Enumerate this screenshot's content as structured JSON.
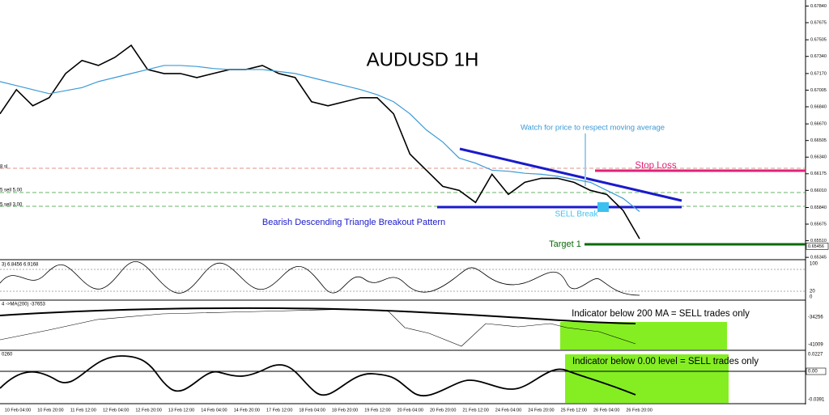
{
  "chart_data": {
    "type": "line",
    "title": "AUDUSD 1H",
    "categories": [
      null,
      null,
      null,
      null,
      null,
      null,
      null,
      null,
      null,
      null,
      null,
      null,
      null,
      null,
      null,
      null,
      null,
      null,
      null,
      null,
      null,
      null,
      null,
      null,
      null,
      null,
      null,
      null,
      null,
      null,
      null,
      null,
      null,
      null,
      null,
      null,
      null,
      null,
      null,
      null
    ],
    "series": [
      {
        "color": "#000000",
        "values": [
          0.6677,
          0.6701,
          0.6685,
          0.6693,
          0.6717,
          0.673,
          0.6725,
          0.6733,
          0.6745,
          0.6721,
          0.6717,
          0.6717,
          0.6713,
          0.6717,
          0.6721,
          0.6721,
          0.6725,
          0.6717,
          0.6713,
          0.6689,
          0.6685,
          0.6689,
          0.6693,
          0.6693,
          0.6677,
          0.6637,
          0.6621,
          0.6605,
          0.6601,
          0.6589,
          0.6617,
          0.6597,
          0.6609,
          0.6613,
          0.6613,
          0.6609,
          0.6601,
          0.6597,
          0.6581,
          0.6553
        ]
      },
      {
        "color": "#3c9ad6",
        "values": [
          0.6709,
          0.6705,
          0.6701,
          0.6697,
          0.67,
          0.6703,
          0.6709,
          0.6713,
          0.6717,
          0.6721,
          0.6725,
          0.6725,
          0.6724,
          0.6722,
          0.6721,
          0.6721,
          0.6721,
          0.6719,
          0.6717,
          0.6713,
          0.6709,
          0.6705,
          0.6701,
          0.6696,
          0.6689,
          0.6677,
          0.6661,
          0.6649,
          0.6633,
          0.6628,
          0.6621,
          0.662,
          0.6618,
          0.6617,
          0.6615,
          0.6612,
          0.6609,
          0.6601,
          0.6593,
          0.658
        ]
      }
    ],
    "ylim": [
      0.6533,
      0.679
    ],
    "yticks": [
      {
        "value": 0.6784,
        "label": "0.67840"
      },
      {
        "value": 0.67675,
        "label": "0.67675"
      },
      {
        "value": 0.67505,
        "label": "0.67505"
      },
      {
        "value": 0.6734,
        "label": "0.67340"
      },
      {
        "value": 0.6717,
        "label": "0.67170"
      },
      {
        "value": 0.67005,
        "label": "0.67005"
      },
      {
        "value": 0.6684,
        "label": "0.66840"
      },
      {
        "value": 0.6667,
        "label": "0.66670"
      },
      {
        "value": 0.66505,
        "label": "0.66505"
      },
      {
        "value": 0.6634,
        "label": "0.66340"
      },
      {
        "value": 0.66175,
        "label": "0.66175"
      },
      {
        "value": 0.6601,
        "label": "0.66010"
      },
      {
        "value": 0.6584,
        "label": "0.65840"
      },
      {
        "value": 0.65675,
        "label": "0.65675"
      },
      {
        "value": 0.6551,
        "label": "0.65510"
      },
      {
        "value": 0.65345,
        "label": "0.65345"
      }
    ],
    "current_price": {
      "value": 0.65456,
      "label": "0.65456"
    },
    "x_axis_labels": [
      "10 Feb 04:00",
      "10 Feb 20:00",
      "11 Feb 12:00",
      "12 Feb 04:00",
      "12 Feb 20:00",
      "13 Feb 12:00",
      "14 Feb 04:00",
      "14 Feb 20:00",
      "17 Feb 12:00",
      "18 Feb 04:00",
      "18 Feb 20:00",
      "19 Feb 12:00",
      "20 Feb 04:00",
      "20 Feb 20:00",
      "21 Feb 12:00",
      "24 Feb 04:00",
      "24 Feb 20:00",
      "25 Feb 12:00",
      "26 Feb 04:00",
      "26 Feb 20:00"
    ],
    "annotations": {
      "watch": "Watch for price to respect moving average",
      "stop_loss": "Stop Loss",
      "sell_break": "SELL Break",
      "pattern": "Bearish Descending Triangle Breakout Pattern",
      "target": "Target 1",
      "level_sl": "8 sl",
      "level_sell5": "5 sell 5.00",
      "level_sell3": "5 sell 3.00"
    },
    "panels": [
      {
        "header": "3) 6.8456 6.9168",
        "ticks": [
          "100",
          "20",
          "0"
        ]
      },
      {
        "header": "4 ->MA(200) -37653",
        "note": "Indicator below 200 MA = SELL trades only",
        "ticks": [
          "-34256",
          "-41009"
        ]
      },
      {
        "header": "0260",
        "note": "Indicator below 0.00 level = SELL trades only",
        "ticks": [
          "0.0227",
          "0.00",
          "-0.0391"
        ]
      }
    ]
  }
}
